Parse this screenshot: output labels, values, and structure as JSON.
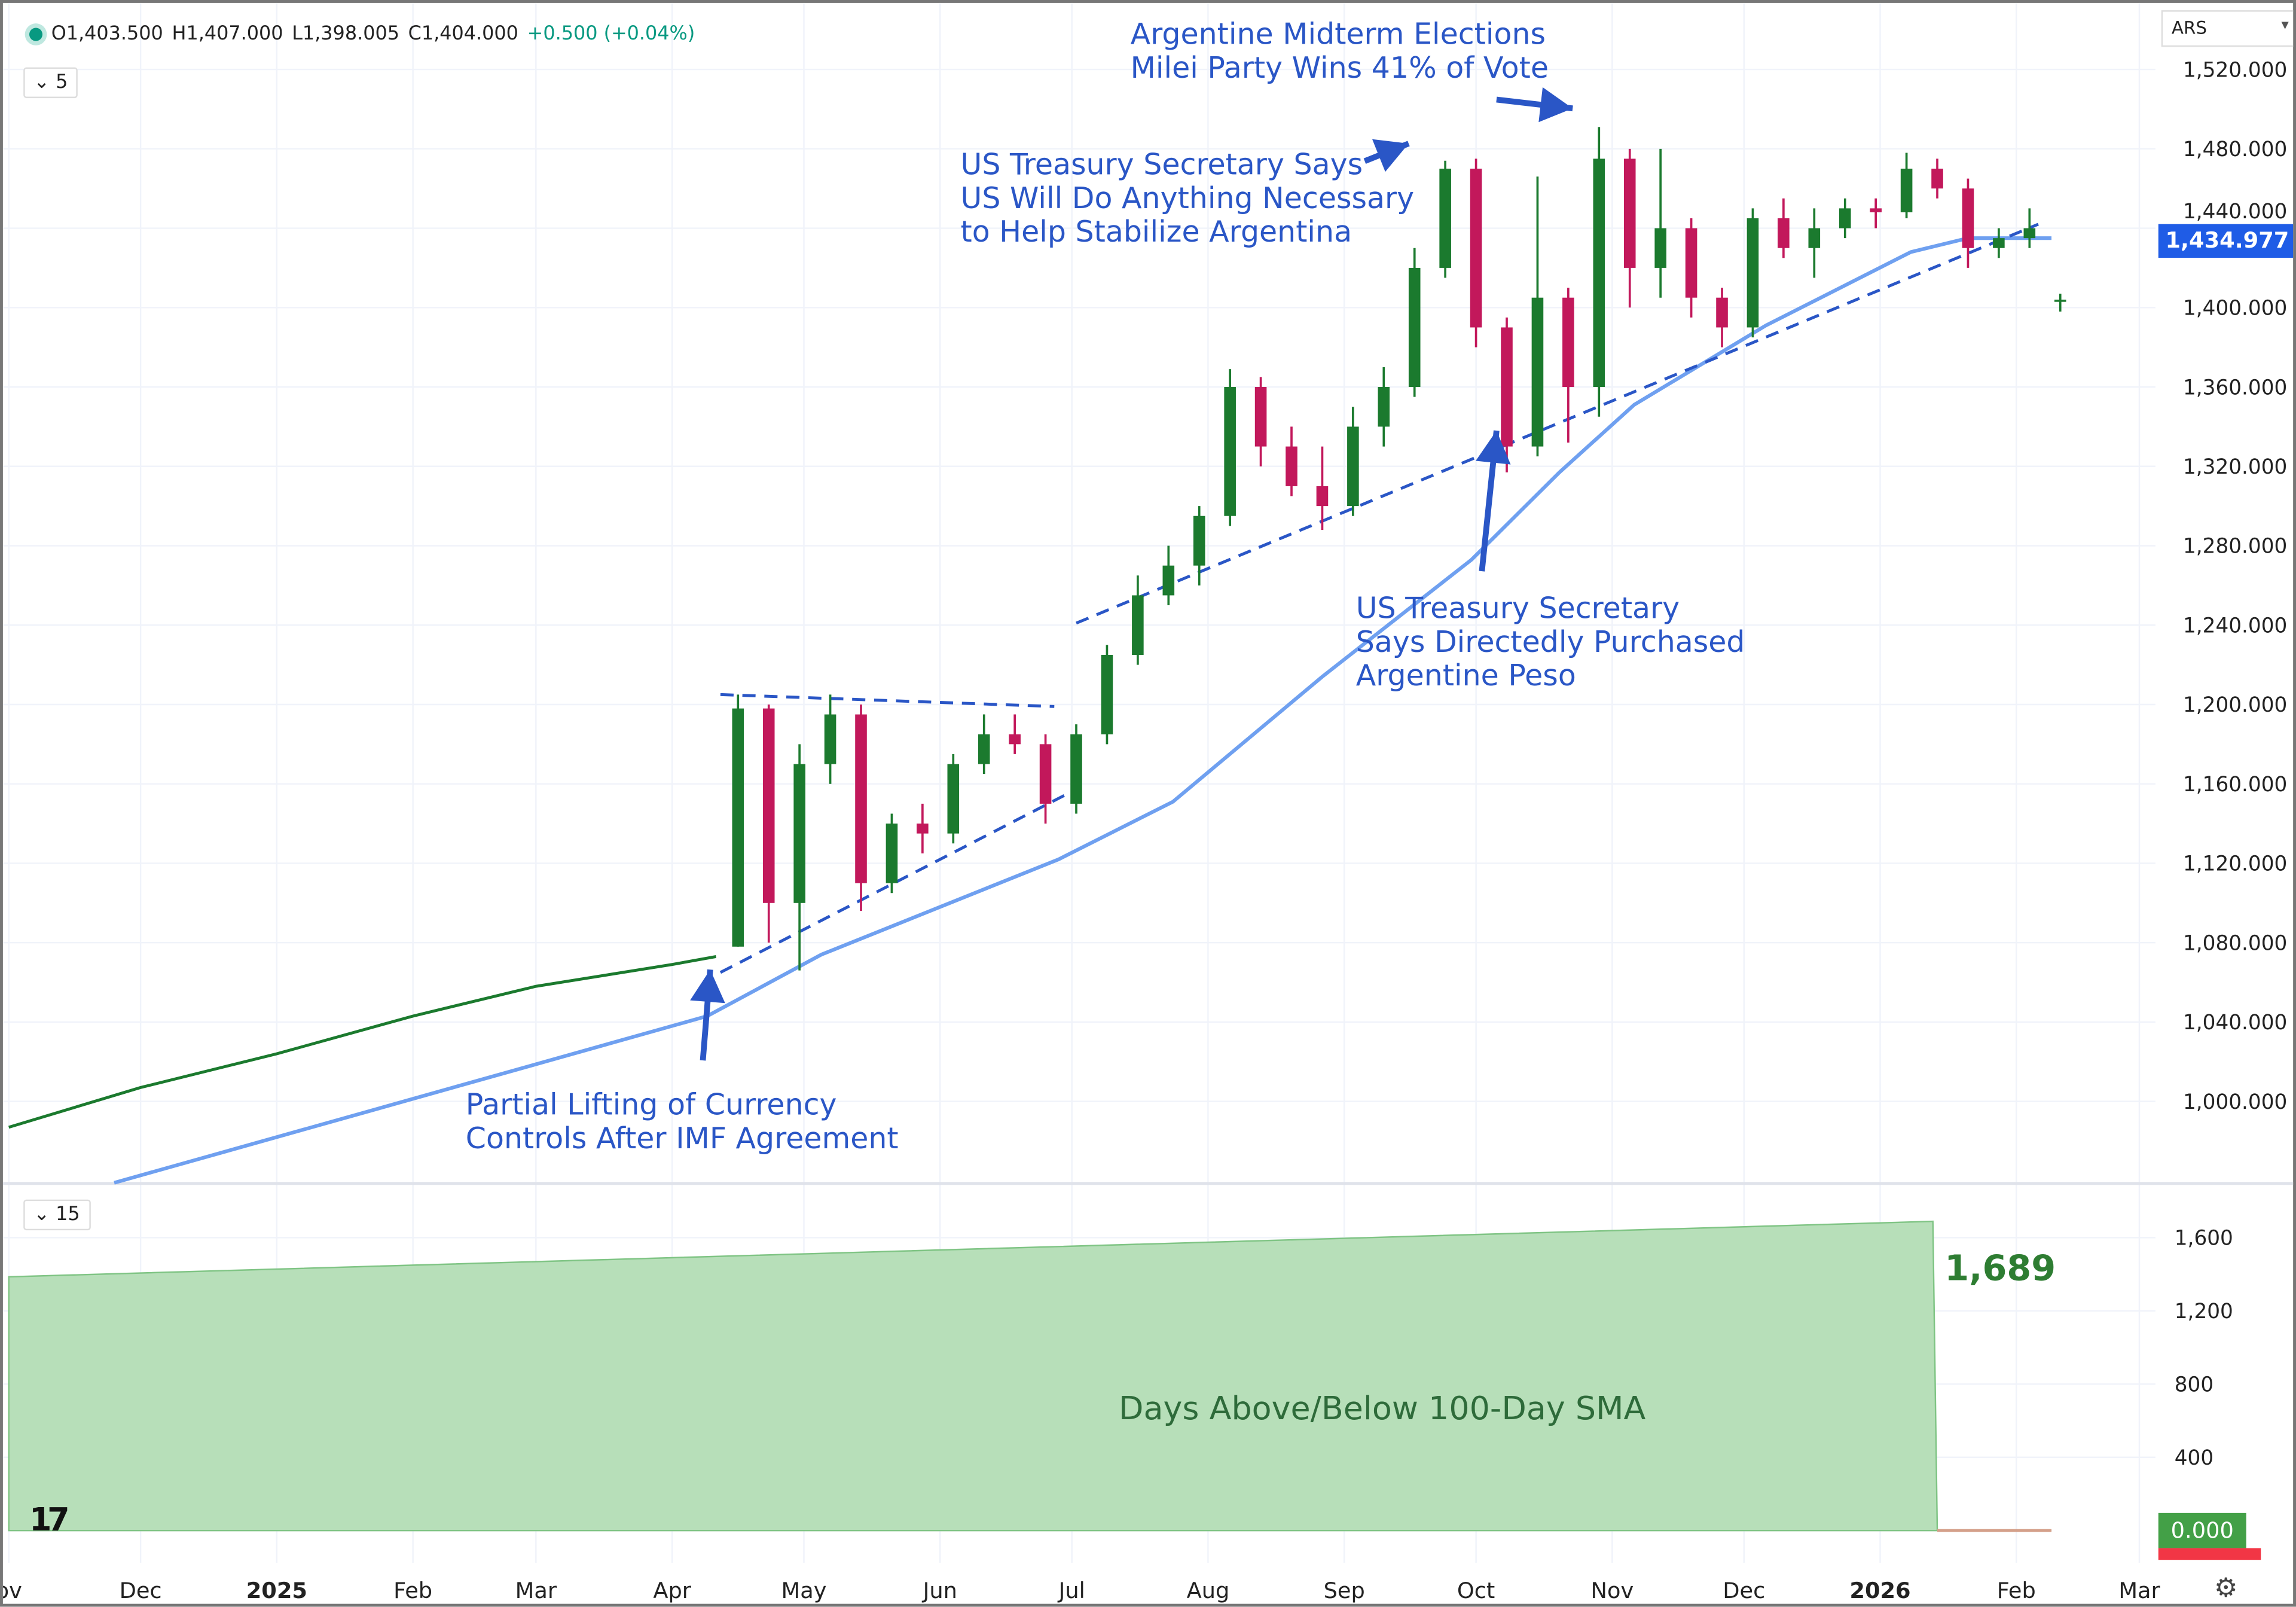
{
  "legend": {
    "open": "O1,403.500",
    "high": "H1,407.000",
    "low": "L1,398.005",
    "close": "C1,404.000",
    "change": "+0.500 (+0.04%)"
  },
  "price_pane_toggle": "5",
  "indicator_pane_toggle": "15",
  "currency_select": "ARS",
  "last_sma_badge": "1,434.977",
  "indicator_last_badge": "0.000",
  "indicator_value_label": "1,689",
  "indicator_title": "Days Above/Below 100-Day SMA",
  "annotations": {
    "midterm": [
      "Argentine Midterm Elections",
      "Milei Party Wins 41% of Vote"
    ],
    "treasury_says": [
      "US Treasury Secretary Says",
      "US Will Do Anything Necessary",
      "to Help Stabilize Argentina"
    ],
    "treasury_purchased": [
      "US Treasury Secretary",
      "Says Directedly Purchased",
      "Argentine Peso"
    ],
    "imf": [
      "Partial Lifting of Currency",
      "Controls After IMF Agreement"
    ]
  },
  "colors": {
    "up": "#1b7a2e",
    "down": "#c2185b",
    "sma": "#6fa0f0",
    "trend": "#2a56c6",
    "area": "#b7dfb9",
    "badge_blue": "#1f5ce6"
  },
  "chart_data": [
    {
      "type": "candlestick",
      "ylim": [
        970,
        1525
      ],
      "yticks": [
        1000,
        1040,
        1080,
        1120,
        1160,
        1200,
        1240,
        1280,
        1320,
        1360,
        1400,
        1440,
        1480,
        1520
      ],
      "ytick_labels": [
        "1,000.000",
        "1,040.000",
        "1,080.000",
        "1,120.000",
        "1,160.000",
        "1,200.000",
        "1,240.000",
        "1,280.000",
        "1,320.000",
        "1,360.000",
        "1,400.000",
        "1,440.000",
        "1,480.000",
        "1,520.000"
      ],
      "xticks": [
        {
          "date": "2024-11-01",
          "label": "ov"
        },
        {
          "date": "2024-12-01",
          "label": "Dec"
        },
        {
          "date": "2025-01-01",
          "label": "2025"
        },
        {
          "date": "2025-02-01",
          "label": "Feb"
        },
        {
          "date": "2025-03-01",
          "label": "Mar"
        },
        {
          "date": "2025-04-01",
          "label": "Apr"
        },
        {
          "date": "2025-05-01",
          "label": "May"
        },
        {
          "date": "2025-06-01",
          "label": "Jun"
        },
        {
          "date": "2025-07-01",
          "label": "Jul"
        },
        {
          "date": "2025-08-01",
          "label": "Aug"
        },
        {
          "date": "2025-09-01",
          "label": "Sep"
        },
        {
          "date": "2025-10-01",
          "label": "Oct"
        },
        {
          "date": "2025-11-01",
          "label": "Nov"
        },
        {
          "date": "2025-12-01",
          "label": "Dec"
        },
        {
          "date": "2026-01-01",
          "label": "2026"
        },
        {
          "date": "2026-02-01",
          "label": "Feb"
        },
        {
          "date": "2026-03-01",
          "label": "Mar"
        }
      ],
      "crawl": [
        [
          "2024-11-01",
          987
        ],
        [
          "2024-12-01",
          1007
        ],
        [
          "2025-01-01",
          1024
        ],
        [
          "2025-02-01",
          1043
        ],
        [
          "2025-03-01",
          1058
        ],
        [
          "2025-04-01",
          1069
        ],
        [
          "2025-04-11",
          1073
        ]
      ],
      "ohlc": [
        [
          "2025-04-14",
          1078,
          1205,
          1078,
          1198
        ],
        [
          "2025-04-21",
          1198,
          1200,
          1080,
          1100
        ],
        [
          "2025-04-28",
          1100,
          1180,
          1066,
          1170
        ],
        [
          "2025-05-05",
          1170,
          1205,
          1160,
          1195
        ],
        [
          "2025-05-12",
          1195,
          1200,
          1096,
          1110
        ],
        [
          "2025-05-19",
          1110,
          1145,
          1105,
          1140
        ],
        [
          "2025-05-26",
          1140,
          1150,
          1125,
          1135
        ],
        [
          "2025-06-02",
          1135,
          1175,
          1130,
          1170
        ],
        [
          "2025-06-09",
          1170,
          1195,
          1165,
          1185
        ],
        [
          "2025-06-16",
          1185,
          1195,
          1175,
          1180
        ],
        [
          "2025-06-23",
          1180,
          1185,
          1140,
          1150
        ],
        [
          "2025-06-30",
          1150,
          1190,
          1145,
          1185
        ],
        [
          "2025-07-07",
          1185,
          1230,
          1180,
          1225
        ],
        [
          "2025-07-14",
          1225,
          1265,
          1220,
          1255
        ],
        [
          "2025-07-21",
          1255,
          1280,
          1250,
          1270
        ],
        [
          "2025-07-28",
          1270,
          1300,
          1260,
          1295
        ],
        [
          "2025-08-04",
          1295,
          1369,
          1290,
          1360
        ],
        [
          "2025-08-11",
          1360,
          1365,
          1320,
          1330
        ],
        [
          "2025-08-18",
          1330,
          1340,
          1305,
          1310
        ],
        [
          "2025-08-25",
          1310,
          1330,
          1288,
          1300
        ],
        [
          "2025-09-01",
          1300,
          1350,
          1295,
          1340
        ],
        [
          "2025-09-08",
          1340,
          1370,
          1330,
          1360
        ],
        [
          "2025-09-15",
          1360,
          1430,
          1355,
          1420
        ],
        [
          "2025-09-22",
          1420,
          1474,
          1415,
          1470
        ],
        [
          "2025-09-29",
          1470,
          1475,
          1380,
          1390
        ],
        [
          "2025-10-06",
          1390,
          1395,
          1317,
          1330
        ],
        [
          "2025-10-13",
          1330,
          1466,
          1325,
          1405
        ],
        [
          "2025-10-20",
          1405,
          1410,
          1332,
          1360
        ],
        [
          "2025-10-27",
          1360,
          1491,
          1345,
          1475
        ],
        [
          "2025-11-03",
          1475,
          1480,
          1400,
          1420
        ],
        [
          "2025-11-10",
          1420,
          1480,
          1405,
          1440
        ],
        [
          "2025-11-17",
          1440,
          1445,
          1395,
          1405
        ],
        [
          "2025-11-24",
          1405,
          1410,
          1380,
          1390
        ],
        [
          "2025-12-01",
          1390,
          1450,
          1385,
          1445
        ],
        [
          "2025-12-08",
          1445,
          1455,
          1425,
          1430
        ],
        [
          "2025-12-15",
          1430,
          1450,
          1415,
          1440
        ],
        [
          "2025-12-22",
          1440,
          1455,
          1435,
          1450
        ],
        [
          "2025-12-29",
          1450,
          1455,
          1440,
          1448
        ],
        [
          "2026-01-05",
          1448,
          1478,
          1445,
          1470
        ],
        [
          "2026-01-12",
          1470,
          1475,
          1455,
          1460
        ],
        [
          "2026-01-19",
          1460,
          1465,
          1420,
          1430
        ],
        [
          "2026-01-26",
          1430,
          1440,
          1425,
          1435
        ],
        [
          "2026-02-02",
          1435,
          1450,
          1430,
          1440
        ],
        [
          "2026-02-09",
          1403.5,
          1407,
          1398.005,
          1404
        ]
      ],
      "sma100": [
        [
          "2024-11-25",
          959
        ],
        [
          "2025-04-09",
          1043
        ],
        [
          "2025-05-05",
          1074
        ],
        [
          "2025-06-28",
          1122
        ],
        [
          "2025-07-24",
          1151
        ],
        [
          "2025-08-27",
          1214
        ],
        [
          "2025-09-30",
          1273
        ],
        [
          "2025-10-20",
          1317
        ],
        [
          "2025-11-06",
          1351
        ],
        [
          "2025-12-06",
          1391
        ],
        [
          "2026-01-08",
          1428
        ],
        [
          "2026-01-21",
          1435
        ],
        [
          "2026-02-09",
          1434.977
        ]
      ],
      "trendlines": [
        [
          [
            "2025-04-12",
            1065
          ],
          [
            "2025-06-30",
            1155
          ]
        ],
        [
          [
            "2025-04-12",
            1205
          ],
          [
            "2025-06-27",
            1199
          ]
        ],
        [
          [
            "2025-07-02",
            1241
          ],
          [
            "2026-02-06",
            1442
          ]
        ]
      ]
    },
    {
      "type": "area",
      "title": "Days Above/Below 100-Day SMA",
      "ylim": [
        0,
        1750
      ],
      "yticks": [
        400,
        800,
        1200,
        1600
      ],
      "ytick_labels": [
        "400",
        "800",
        "1,200",
        "1,600"
      ],
      "points": [
        [
          "2024-11-01",
          1386
        ],
        [
          "2026-01-13",
          1689
        ],
        [
          "2026-01-14",
          0
        ],
        [
          "2026-02-09",
          0
        ]
      ]
    }
  ]
}
